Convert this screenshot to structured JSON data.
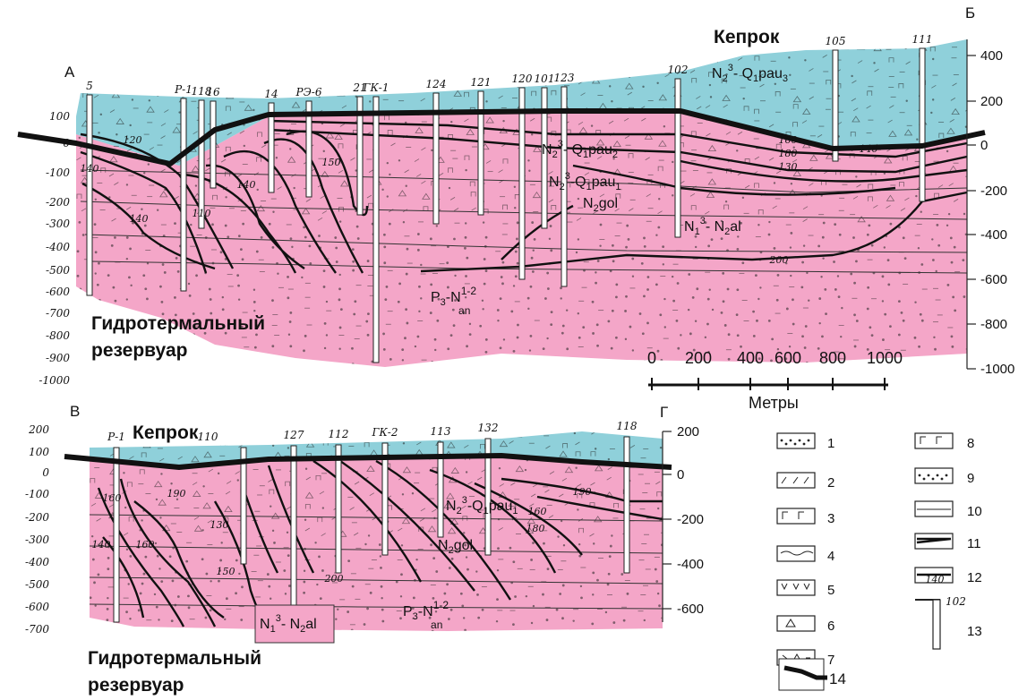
{
  "section_top": {
    "corner_left": "А",
    "corner_right": "Б",
    "caprock_label": "Кепрок",
    "reservoir_label_1": "Гидротермальный",
    "reservoir_label_2": "резервуар",
    "left_ticks": [
      "100",
      "0",
      "-100",
      "-200",
      "-300",
      "-400",
      "-500",
      "-600",
      "-700",
      "-800",
      "-900",
      "-1000"
    ],
    "right_ticks": [
      "400",
      "200",
      "0",
      "-200",
      "-400",
      "-600",
      "-800",
      "-1000"
    ],
    "wells": [
      "5",
      "Р-1",
      "118",
      "16",
      "14",
      "РЭ-6",
      "21",
      "ГК-1",
      "124",
      "121",
      "120",
      "101",
      "123",
      "102",
      "105",
      "111"
    ],
    "formations": {
      "f1_main": "N",
      "f1_sub": "2",
      "f1_sup": "3",
      "f1_rest": "- Q",
      "f1_rest_sub": "1",
      "f1_tail": "pau",
      "f1_tail_sub": "3",
      "f2_main": "N",
      "f2_sub": "2",
      "f2_sup": "3",
      "f2_rest": "- Q",
      "f2_rest_sub": "1",
      "f2_tail": "pau",
      "f2_tail_sub": "2",
      "f3_main": "N",
      "f3_sub": "2",
      "f3_sup": "3",
      "f3_rest": "-Q",
      "f3_rest_sub": "1",
      "f3_tail": "pau",
      "f3_tail_sub": "1",
      "f4_main": "N",
      "f4_sub": "2",
      "f4_tail": "gol",
      "f5_main": "N",
      "f5_sub": "1",
      "f5_sup": "3",
      "f5_rest": "- N",
      "f5_rest_sub": "2",
      "f5_tail": "al",
      "f6_main": "P",
      "f6_sub": "3",
      "f6_rest": "-N",
      "f6_sup": "1-2",
      "f6_tail": "an"
    },
    "isolines": [
      "120",
      "140",
      "140",
      "110",
      "140",
      "150",
      "160",
      "130",
      "180",
      "140",
      "200"
    ]
  },
  "section_bottom": {
    "corner_left": "В",
    "corner_right": "Г",
    "caprock_label": "Кепрок",
    "reservoir_label_1": "Гидротермальный",
    "reservoir_label_2": "резервуар",
    "left_ticks": [
      "200",
      "100",
      "0",
      "-100",
      "-200",
      "-300",
      "-400",
      "-500",
      "-600",
      "-700"
    ],
    "right_ticks": [
      "200",
      "0",
      "-200",
      "-400",
      "-600"
    ],
    "wells": [
      "Р-1",
      "110",
      "127",
      "112",
      "ГК-2",
      "113",
      "132",
      "118"
    ],
    "formations": {
      "f1_main": "N",
      "f1_sub": "2",
      "f1_sup": "3",
      "f1_rest": "-Q",
      "f1_rest_sub": "1",
      "f1_tail": "pau",
      "f1_tail_sub": "1",
      "f2_main": "N",
      "f2_sub": "2",
      "f2_tail": "gol",
      "f3_main": "N",
      "f3_sub": "1",
      "f3_sup": "3",
      "f3_rest": "- N",
      "f3_rest_sub": "2",
      "f3_tail": "al",
      "f4_main": "P",
      "f4_sub": "3",
      "f4_rest": "-N",
      "f4_sup": "1-2",
      "f4_tail": "an"
    },
    "isolines": [
      "160",
      "140",
      "160",
      "130",
      "150",
      "190",
      "160",
      "180",
      "190",
      "200"
    ]
  },
  "scale_bar": {
    "ticks": [
      "0",
      "200",
      "400",
      "600",
      "800",
      "1000"
    ],
    "unit": "Метры"
  },
  "legend": {
    "items": [
      "1",
      "2",
      "3",
      "4",
      "5",
      "6",
      "7",
      "8",
      "9",
      "10",
      "11",
      "12",
      "13",
      "14"
    ],
    "well_sample_label": "102",
    "isoline_sample_label": "140"
  },
  "colors": {
    "caprock": "#8fd0da",
    "reservoir": "#f4a6c8",
    "boundary": "#111111"
  }
}
